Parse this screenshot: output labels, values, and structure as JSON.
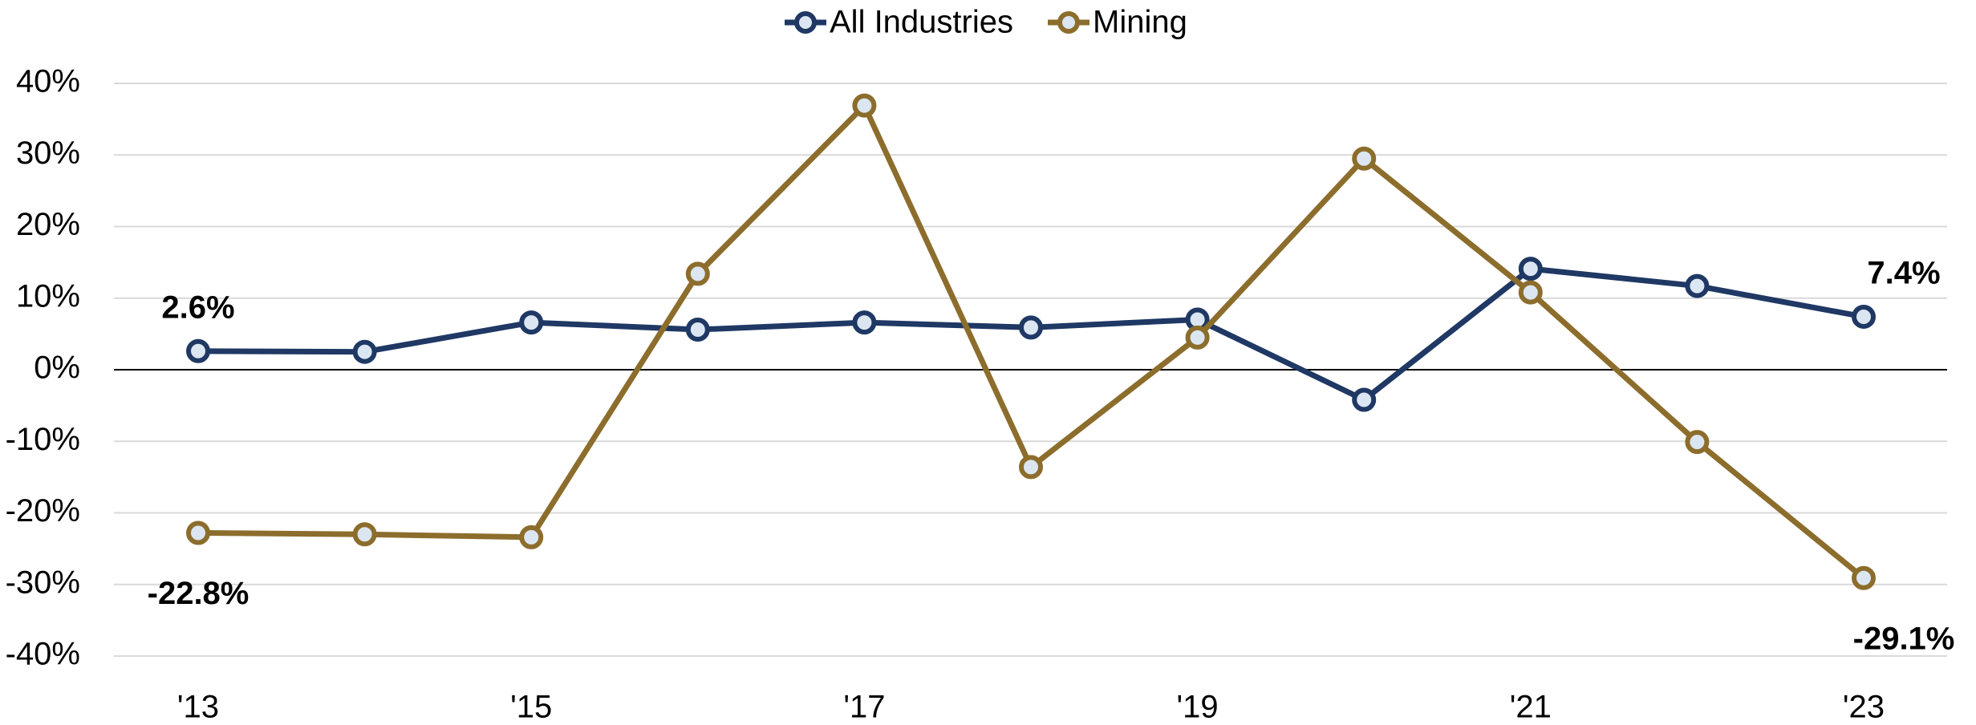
{
  "chart_data": {
    "type": "line",
    "categories": [
      "'13",
      null,
      "'15",
      null,
      "'17",
      null,
      "'19",
      null,
      "'21",
      null,
      "'23"
    ],
    "series": [
      {
        "name": "All Industries",
        "color": "#1f3864",
        "values": [
          2.6,
          2.5,
          6.6,
          5.6,
          6.6,
          5.9,
          7.0,
          -4.2,
          14.1,
          11.7,
          7.4
        ],
        "value_labels": [
          "2.6%",
          null,
          null,
          null,
          null,
          null,
          null,
          null,
          null,
          null,
          "7.4%"
        ]
      },
      {
        "name": "Mining",
        "color": "#8c6d2c",
        "values": [
          -22.8,
          -23.0,
          -23.4,
          13.4,
          36.9,
          -13.6,
          4.5,
          29.5,
          10.8,
          -10.1,
          -29.1
        ],
        "value_labels": [
          "-22.8%",
          null,
          null,
          null,
          null,
          null,
          null,
          null,
          null,
          null,
          "-29.1%"
        ]
      }
    ],
    "ylim": [
      -40,
      40
    ],
    "yticks": [
      {
        "value": -40,
        "label": "-40%"
      },
      {
        "value": -30,
        "label": "-30%"
      },
      {
        "value": -20,
        "label": "-20%"
      },
      {
        "value": -10,
        "label": "-10%"
      },
      {
        "value": 0,
        "label": "0%"
      },
      {
        "value": 10,
        "label": "10%"
      },
      {
        "value": 20,
        "label": "20%"
      },
      {
        "value": 30,
        "label": "30%"
      },
      {
        "value": 40,
        "label": "40%"
      }
    ],
    "grid": true,
    "legend": "top"
  }
}
